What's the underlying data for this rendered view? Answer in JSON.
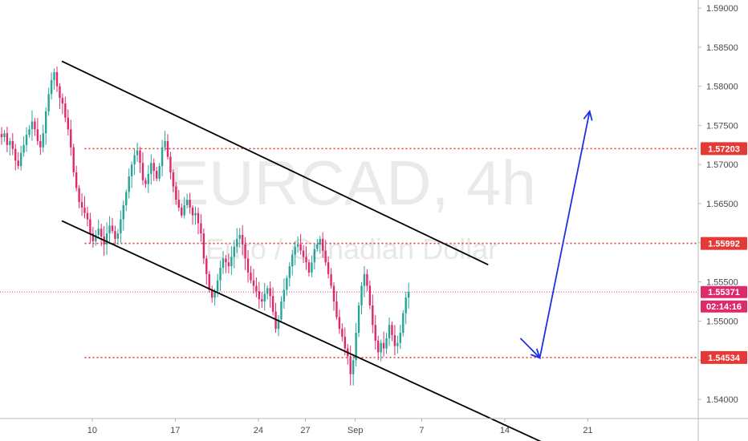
{
  "watermark": {
    "symbol": "EURCAD, 4h",
    "name": "Euro / Canadian Dollar"
  },
  "colors": {
    "up": "#26a69a",
    "down": "#e0296b",
    "level": "#e53935",
    "current": "#e0296b",
    "channel": "#000000",
    "arrow": "#1c32e6"
  },
  "chart_data": {
    "type": "candlestick",
    "symbol": "EURCAD",
    "timeframe": "4h",
    "ylim": [
      1.535,
      1.591
    ],
    "y_ticks": [
      "1.59000",
      "1.58500",
      "1.58000",
      "1.57500",
      "1.57000",
      "1.56500",
      "1.56000",
      "1.55500",
      "1.55000",
      "1.54500",
      "1.54000"
    ],
    "x_ticks": [
      {
        "label": "10",
        "bar": 22
      },
      {
        "label": "17",
        "bar": 52
      },
      {
        "label": "24",
        "bar": 82
      },
      {
        "label": "27",
        "bar": 99
      },
      {
        "label": "Sep",
        "bar": 117
      },
      {
        "label": "7",
        "bar": 141
      },
      {
        "label": "14",
        "bar": 171
      },
      {
        "label": "21",
        "bar": 201
      }
    ],
    "ohlc_closes": [
      1.5735,
      1.574,
      1.5725,
      1.573,
      1.572,
      1.5705,
      1.5698,
      1.5715,
      1.5725,
      1.5738,
      1.5745,
      1.5755,
      1.5745,
      1.573,
      1.5722,
      1.574,
      1.5768,
      1.579,
      1.5808,
      1.5818,
      1.58,
      1.5785,
      1.5778,
      1.576,
      1.5745,
      1.5722,
      1.569,
      1.567,
      1.5652,
      1.5645,
      1.5638,
      1.563,
      1.5612,
      1.5602,
      1.561,
      1.5618,
      1.5608,
      1.5598,
      1.5612,
      1.5622,
      1.5615,
      1.5605,
      1.5612,
      1.563,
      1.5648,
      1.5665,
      1.5685,
      1.57,
      1.5712,
      1.5718,
      1.5702,
      1.568,
      1.5675,
      1.5688,
      1.5702,
      1.5692,
      1.5682,
      1.5698,
      1.5722,
      1.573,
      1.571,
      1.569,
      1.5672,
      1.5655,
      1.5645,
      1.5635,
      1.5648,
      1.5655,
      1.5645,
      1.5635,
      1.5638,
      1.5625,
      1.5612,
      1.558,
      1.556,
      1.554,
      1.553,
      1.5538,
      1.5552,
      1.5568,
      1.558,
      1.5575,
      1.557,
      1.5582,
      1.5595,
      1.5605,
      1.561,
      1.5598,
      1.558,
      1.5562,
      1.5552,
      1.5545,
      1.5538,
      1.5528,
      1.5525,
      1.5535,
      1.5542,
      1.5532,
      1.5512,
      1.549,
      1.5502,
      1.5525,
      1.554,
      1.5555,
      1.557,
      1.5585,
      1.5595,
      1.5598,
      1.559,
      1.5582,
      1.5575,
      1.5562,
      1.5575,
      1.5592,
      1.5598,
      1.5605,
      1.559,
      1.5575,
      1.556,
      1.5545,
      1.5525,
      1.5505,
      1.549,
      1.548,
      1.5465,
      1.5455,
      1.5432,
      1.545,
      1.5485,
      1.552,
      1.5545,
      1.556,
      1.5545,
      1.552,
      1.5495,
      1.5475,
      1.546,
      1.5472,
      1.5465,
      1.5478,
      1.5495,
      1.5482,
      1.5468,
      1.5472,
      1.5485,
      1.551,
      1.553,
      1.5537
    ],
    "levels": [
      {
        "price": 1.57203,
        "label": "1.57203"
      },
      {
        "price": 1.55992,
        "label": "1.55992"
      },
      {
        "price": 1.54534,
        "label": "1.54534"
      }
    ],
    "current_price": {
      "price": 1.55371,
      "label": "1.55371",
      "countdown": "02:14:16"
    },
    "channel": {
      "upper": [
        {
          "bar": 0,
          "price": 1.5832
        },
        {
          "bar": 154,
          "price": 1.5572
        }
      ],
      "lower": [
        {
          "bar": 0,
          "price": 1.5628
        },
        {
          "bar": 154,
          "price": 1.5377
        }
      ]
    },
    "projection": [
      {
        "bar": 141,
        "price": 1.5478
      },
      {
        "bar": 148,
        "price": 1.5453
      },
      {
        "bar": 166,
        "price": 1.5768
      }
    ]
  }
}
